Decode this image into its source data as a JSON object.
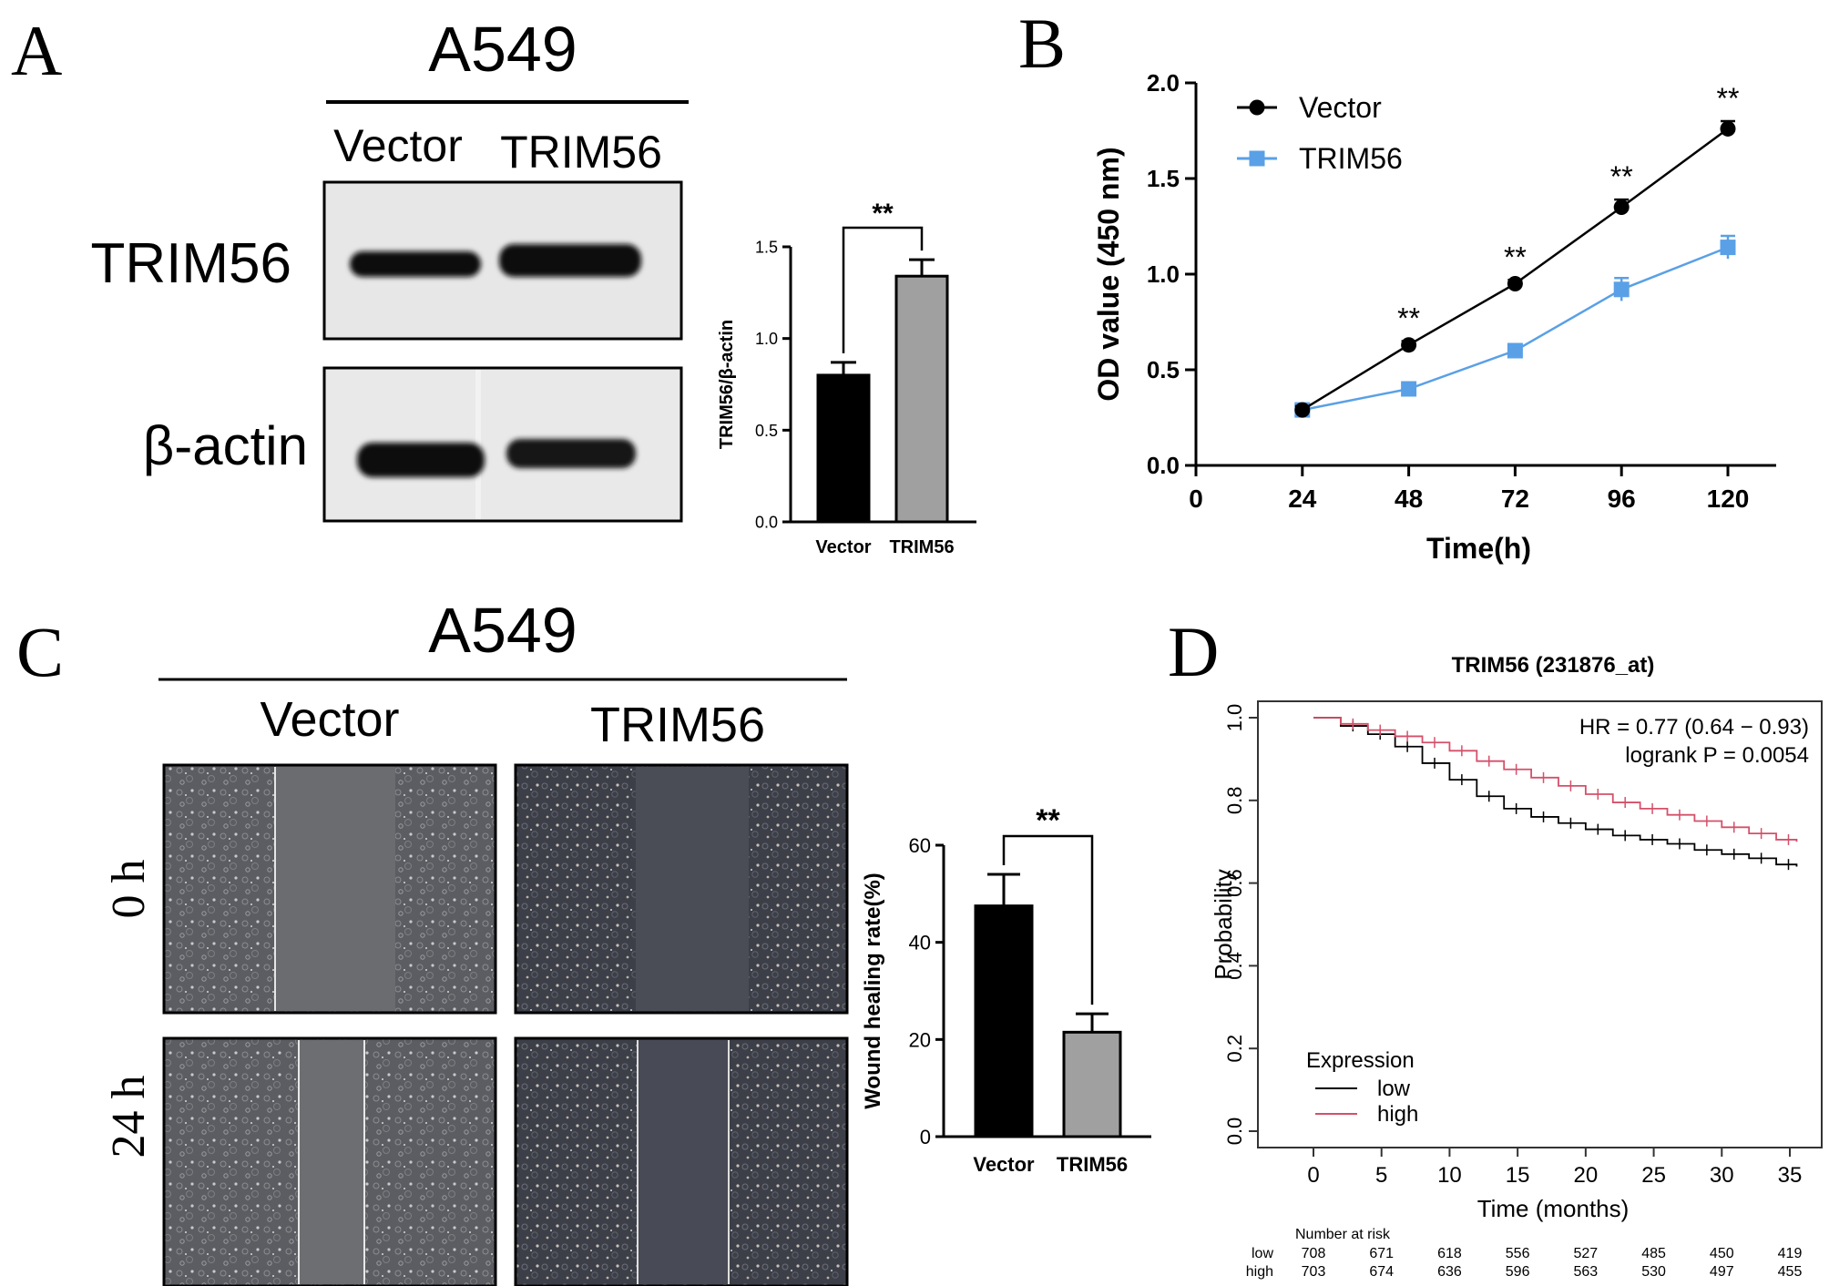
{
  "panels": {
    "A": {
      "letter": "A",
      "cell_line": "A549",
      "columns": [
        "Vector",
        "TRIM56"
      ],
      "rows": [
        "TRIM56",
        "β-actin"
      ]
    },
    "B": {
      "letter": "B"
    },
    "C": {
      "letter": "C",
      "cell_line": "A549",
      "columns": [
        "Vector",
        "TRIM56"
      ],
      "rows": [
        "0 h",
        "24 h"
      ]
    },
    "D": {
      "letter": "D",
      "risk_table": {
        "title": "Number at risk",
        "rows": [
          {
            "label": "low",
            "color": "#000000",
            "values": [
              "708",
              "671",
              "618",
              "556",
              "527",
              "485",
              "450",
              "419"
            ]
          },
          {
            "label": "high",
            "color": "#d4506a",
            "values": [
              "703",
              "674",
              "636",
              "596",
              "563",
              "530",
              "497",
              "455"
            ]
          }
        ]
      }
    }
  },
  "chart_data": [
    {
      "id": "A-bar",
      "type": "bar",
      "categories": [
        "Vector",
        "TRIM56"
      ],
      "values": [
        0.8,
        1.34
      ],
      "errors": [
        0.07,
        0.09
      ],
      "colors": [
        "#000000",
        "#a0a0a0"
      ],
      "ylabel": "TRIM56/β-actin",
      "ylim": [
        0,
        1.5
      ],
      "yticks": [
        "0.0",
        "0.5",
        "1.0",
        "1.5"
      ],
      "significance": "**"
    },
    {
      "id": "B-line",
      "type": "line",
      "xlabel": "Time(h)",
      "ylabel": "OD value (450 nm)",
      "xlim": [
        0,
        130
      ],
      "ylim": [
        0,
        2.0
      ],
      "xticks": [
        "0",
        "24",
        "48",
        "72",
        "96",
        "120"
      ],
      "yticks": [
        "0.0",
        "0.5",
        "1.0",
        "1.5",
        "2.0"
      ],
      "x": [
        24,
        48,
        72,
        96,
        120
      ],
      "series": [
        {
          "name": "Vector",
          "color": "#000000",
          "marker": "circle",
          "values": [
            0.29,
            0.63,
            0.95,
            1.35,
            1.76
          ],
          "errors": [
            0.02,
            0.02,
            0.02,
            0.04,
            0.04
          ]
        },
        {
          "name": "TRIM56",
          "color": "#5aa0e6",
          "marker": "square",
          "values": [
            0.29,
            0.4,
            0.6,
            0.92,
            1.14
          ],
          "errors": [
            0.02,
            0.02,
            0.03,
            0.06,
            0.06
          ]
        }
      ],
      "annotations": [
        "**",
        "**",
        "**",
        "**"
      ],
      "legend": "top-left"
    },
    {
      "id": "C-bar",
      "type": "bar",
      "categories": [
        "Vector",
        "TRIM56"
      ],
      "values": [
        47.5,
        21.5
      ],
      "errors": [
        6.5,
        3.8
      ],
      "colors": [
        "#000000",
        "#a0a0a0"
      ],
      "ylabel": "Wound healing rate(%)",
      "ylim": [
        0,
        60
      ],
      "yticks": [
        "0",
        "20",
        "40",
        "60"
      ],
      "significance": "**"
    },
    {
      "id": "D-km",
      "type": "line",
      "title": "TRIM56 (231876_at)",
      "xlabel": "Time (months)",
      "ylabel": "Probability",
      "xlim": [
        0,
        35
      ],
      "ylim": [
        0,
        1.0
      ],
      "xticks": [
        "0",
        "5",
        "10",
        "15",
        "20",
        "25",
        "30",
        "35"
      ],
      "yticks": [
        "0.0",
        "0.2",
        "0.4",
        "0.6",
        "0.8",
        "1.0"
      ],
      "hr_text": "HR = 0.77 (0.64 − 0.93)",
      "p_text": "logrank P = 0.0054",
      "legend_title": "Expression",
      "legend": "bottom-left",
      "series": [
        {
          "name": "low",
          "color": "#000000",
          "x": [
            0,
            2,
            4,
            6,
            8,
            10,
            12,
            14,
            16,
            18,
            20,
            22,
            24,
            26,
            28,
            30,
            32,
            34,
            35.5
          ],
          "values": [
            1.0,
            0.98,
            0.96,
            0.93,
            0.89,
            0.85,
            0.81,
            0.78,
            0.76,
            0.745,
            0.73,
            0.715,
            0.705,
            0.695,
            0.68,
            0.67,
            0.66,
            0.645,
            0.64
          ]
        },
        {
          "name": "high",
          "color": "#d4506a",
          "x": [
            0,
            2,
            4,
            6,
            8,
            10,
            12,
            14,
            16,
            18,
            20,
            22,
            24,
            26,
            28,
            30,
            32,
            34,
            35.5
          ],
          "values": [
            1.0,
            0.985,
            0.97,
            0.955,
            0.94,
            0.92,
            0.895,
            0.875,
            0.855,
            0.835,
            0.815,
            0.795,
            0.78,
            0.765,
            0.75,
            0.735,
            0.72,
            0.705,
            0.7
          ]
        }
      ]
    }
  ]
}
